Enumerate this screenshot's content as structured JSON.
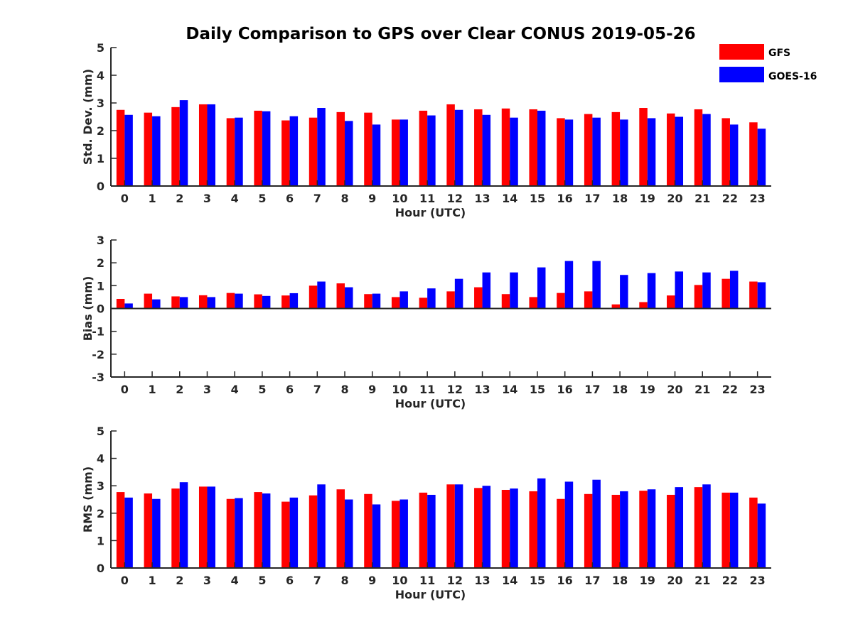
{
  "chart_data": {
    "type": "bar",
    "title": "Daily Comparison to GPS over Clear CONUS 2019-05-26",
    "categories": [
      "0",
      "1",
      "2",
      "3",
      "4",
      "5",
      "6",
      "7",
      "8",
      "9",
      "10",
      "11",
      "12",
      "13",
      "14",
      "15",
      "16",
      "17",
      "18",
      "19",
      "20",
      "21",
      "22",
      "23"
    ],
    "legend": {
      "position": "top-right",
      "entries": [
        {
          "name": "GFS",
          "color": "#ff0000"
        },
        {
          "name": "GOES-16",
          "color": "#0000ff"
        }
      ]
    },
    "panels": [
      {
        "id": "std",
        "ylabel": "Std. Dev. (mm)",
        "xlabel": "Hour (UTC)",
        "ylim": [
          0,
          5
        ],
        "yticks": [
          0,
          1,
          2,
          3,
          4,
          5
        ],
        "series": [
          {
            "name": "GFS",
            "values": [
              2.75,
              2.65,
              2.85,
              2.95,
              2.45,
              2.72,
              2.37,
              2.47,
              2.67,
              2.65,
              2.4,
              2.72,
              2.95,
              2.77,
              2.8,
              2.77,
              2.45,
              2.6,
              2.67,
              2.82,
              2.62,
              2.77,
              2.45,
              2.3
            ]
          },
          {
            "name": "GOES-16",
            "values": [
              2.57,
              2.52,
              3.1,
              2.95,
              2.47,
              2.7,
              2.52,
              2.82,
              2.35,
              2.22,
              2.4,
              2.55,
              2.75,
              2.57,
              2.47,
              2.72,
              2.4,
              2.47,
              2.4,
              2.45,
              2.5,
              2.6,
              2.22,
              2.07
            ]
          }
        ]
      },
      {
        "id": "bias",
        "ylabel": "Bias (mm)",
        "xlabel": "Hour (UTC)",
        "ylim": [
          -3,
          3
        ],
        "yticks": [
          -3,
          -2,
          -1,
          0,
          1,
          2,
          3
        ],
        "series": [
          {
            "name": "GFS",
            "values": [
              0.42,
              0.65,
              0.53,
              0.58,
              0.68,
              0.62,
              0.57,
              1.0,
              1.1,
              0.63,
              0.5,
              0.47,
              0.75,
              0.93,
              0.63,
              0.5,
              0.68,
              0.75,
              0.18,
              0.28,
              0.57,
              1.03,
              1.3,
              1.18
            ]
          },
          {
            "name": "GOES-16",
            "values": [
              0.22,
              0.4,
              0.5,
              0.5,
              0.65,
              0.55,
              0.67,
              1.18,
              0.93,
              0.65,
              0.75,
              0.88,
              1.3,
              1.58,
              1.58,
              1.8,
              2.08,
              2.08,
              1.47,
              1.55,
              1.62,
              1.58,
              1.65,
              1.15
            ]
          }
        ]
      },
      {
        "id": "rms",
        "ylabel": "RMS (mm)",
        "xlabel": "Hour (UTC)",
        "ylim": [
          0,
          5
        ],
        "yticks": [
          0,
          1,
          2,
          3,
          4,
          5
        ],
        "series": [
          {
            "name": "GFS",
            "values": [
              2.77,
              2.72,
              2.9,
              2.97,
              2.52,
              2.77,
              2.42,
              2.65,
              2.87,
              2.7,
              2.45,
              2.75,
              3.05,
              2.92,
              2.85,
              2.8,
              2.52,
              2.7,
              2.67,
              2.82,
              2.67,
              2.95,
              2.75,
              2.57
            ]
          },
          {
            "name": "GOES-16",
            "values": [
              2.57,
              2.52,
              3.13,
              2.97,
              2.55,
              2.72,
              2.57,
              3.05,
              2.5,
              2.32,
              2.5,
              2.67,
              3.05,
              3.0,
              2.9,
              3.27,
              3.15,
              3.22,
              2.8,
              2.87,
              2.95,
              3.05,
              2.75,
              2.35
            ]
          }
        ]
      }
    ]
  }
}
